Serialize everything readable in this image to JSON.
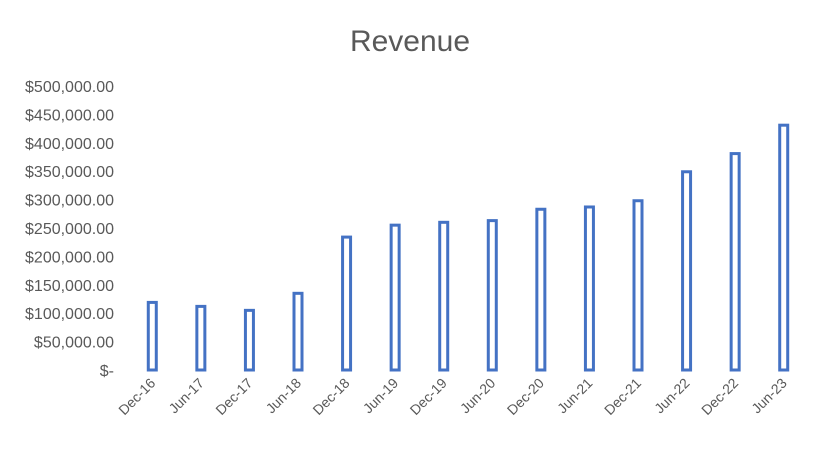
{
  "chart_data": {
    "type": "bar",
    "title": "Revenue",
    "xlabel": "",
    "ylabel": "",
    "categories": [
      "Dec-16",
      "Jun-17",
      "Dec-17",
      "Jun-18",
      "Dec-18",
      "Jun-19",
      "Dec-19",
      "Jun-20",
      "Dec-20",
      "Jun-21",
      "Dec-21",
      "Jun-22",
      "Dec-22",
      "Jun-23"
    ],
    "values": [
      119000,
      112000,
      105000,
      135000,
      234000,
      255000,
      260000,
      263000,
      283000,
      287000,
      298000,
      349000,
      381000,
      431000
    ],
    "ylim": [
      0,
      500000
    ],
    "y_ticks": [
      0,
      50000,
      100000,
      150000,
      200000,
      250000,
      300000,
      350000,
      400000,
      450000,
      500000
    ],
    "y_tick_labels": [
      "$-",
      "$50,000.00",
      "$100,000.00",
      "$150,000.00",
      "$200,000.00",
      "$250,000.00",
      "$300,000.00",
      "$350,000.00",
      "$400,000.00",
      "$450,000.00",
      "$500,000.00"
    ],
    "grid": false,
    "legend": "none",
    "colors": {
      "bar_outline": "#4472c4",
      "bar_fill": "#ffffff",
      "text": "#595959"
    }
  }
}
